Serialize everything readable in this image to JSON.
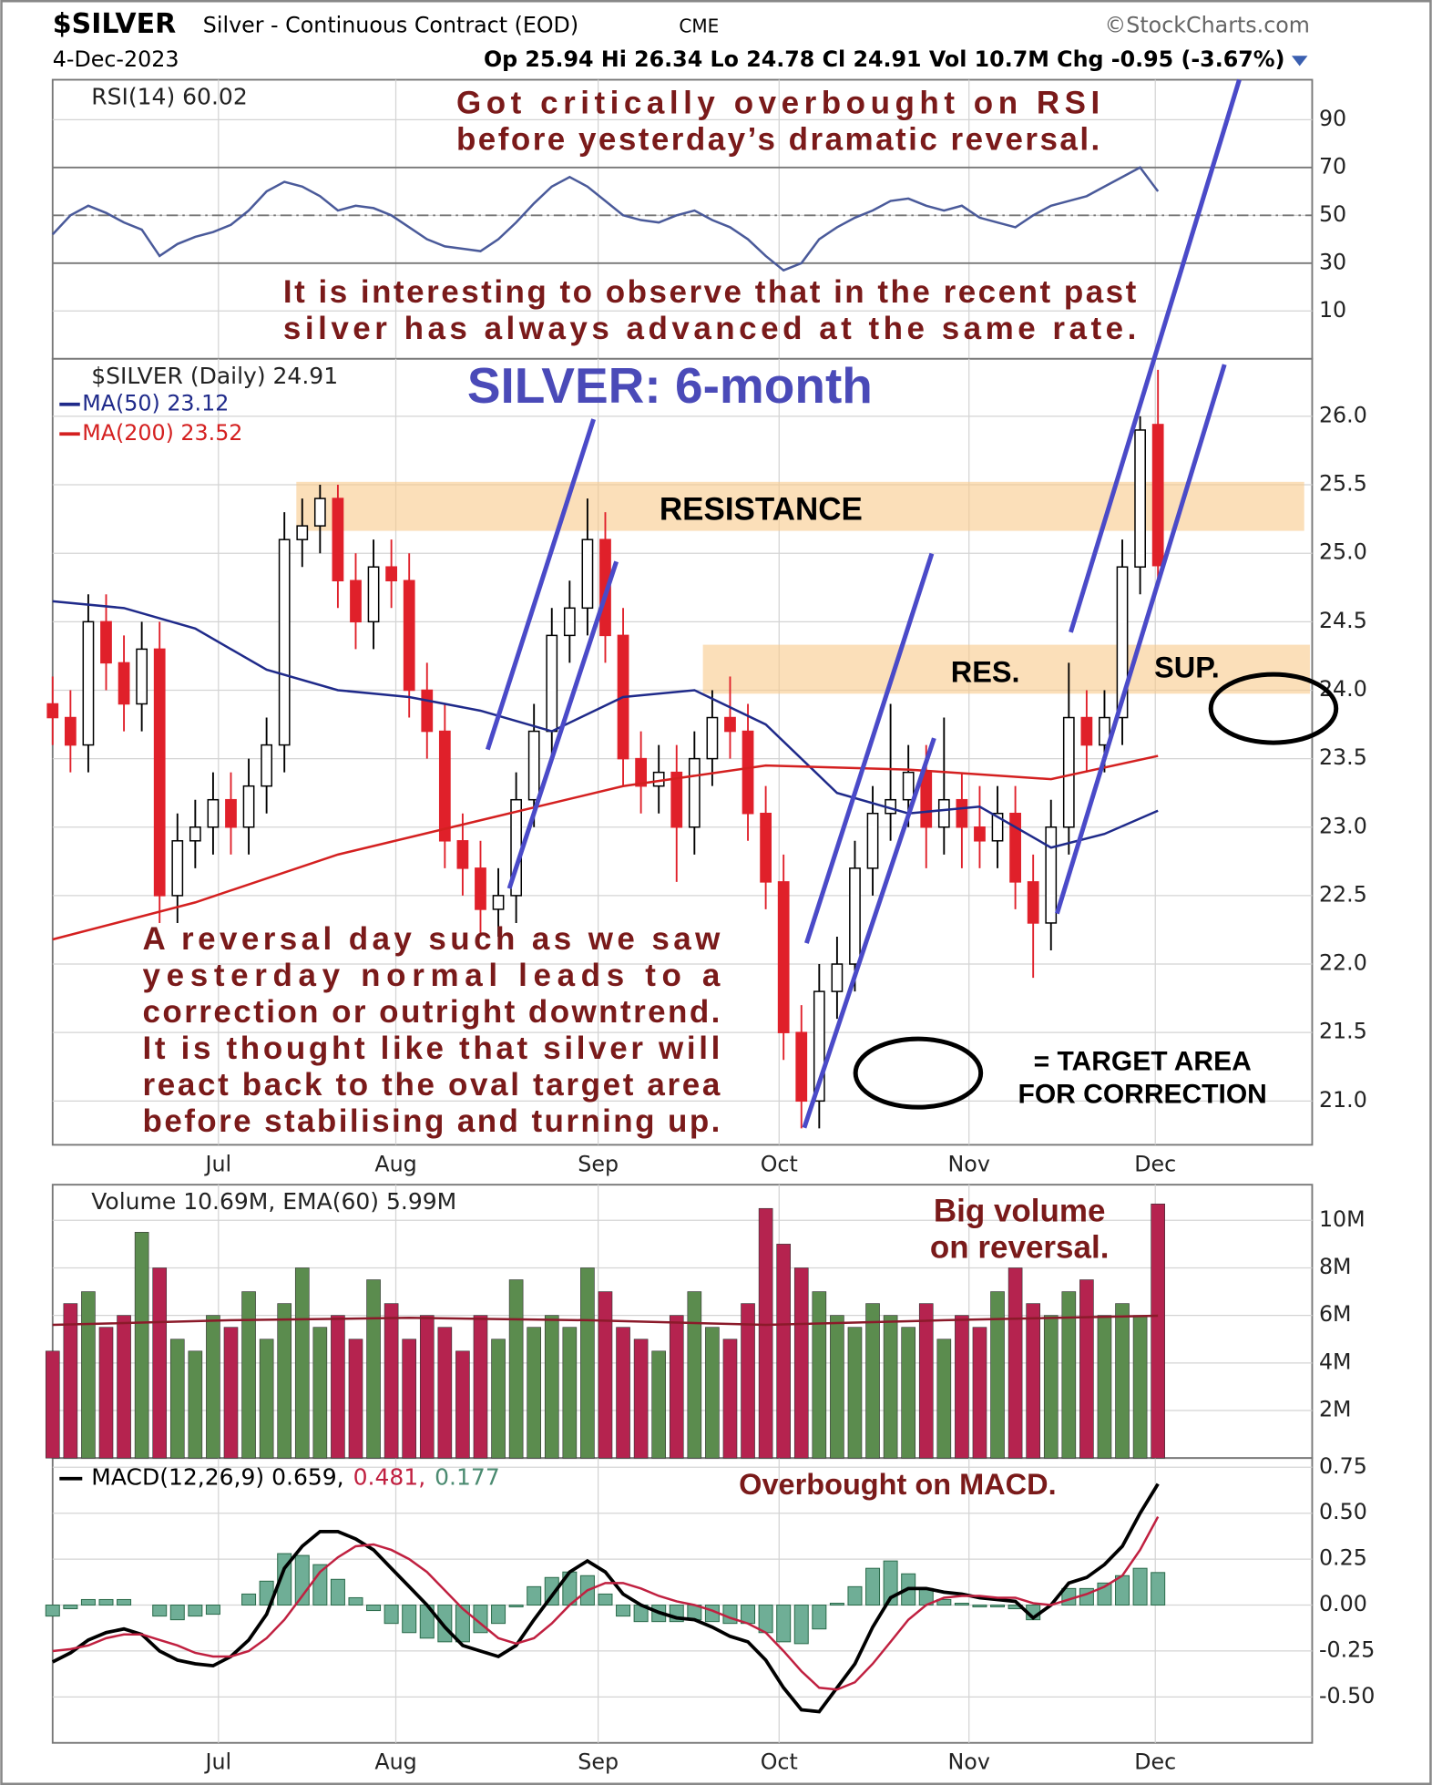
{
  "header": {
    "symbol": "$SILVER",
    "name": "Silver - Continuous Contract (EOD)",
    "exchange": "CME",
    "source": "©StockCharts.com",
    "date": "4-Dec-2023",
    "quote": "Op 25.94 Hi 26.34 Lo 24.78 Cl 24.91 Vol 10.7M Chg -0.95 (-3.67%)"
  },
  "annotations": [
    {
      "lines": [
        "Got critically overbought on RSI",
        "before yesterday’s dramatic reversal."
      ],
      "color": "#7a1a1a"
    },
    {
      "lines": [
        "It is interesting to observe that in the recent past",
        "silver has always advanced at the same rate."
      ],
      "color": "#7a1a1a"
    },
    {
      "lines": [
        "SILVER: 6-month"
      ],
      "color": "#4a4ab8"
    },
    {
      "lines": [
        "RESISTANCE"
      ],
      "color": "#000000"
    },
    {
      "lines": [
        "RES."
      ],
      "color": "#000000"
    },
    {
      "lines": [
        "SUP."
      ],
      "color": "#000000"
    },
    {
      "lines": [
        "A reversal day such as we saw",
        "yesterday normal leads to a",
        "correction or outright downtrend.",
        "It is thought like that silver will",
        "react back to the oval target area",
        "before stabilising and turning up."
      ],
      "color": "#7a1a1a"
    },
    {
      "lines": [
        "= TARGET AREA",
        "FOR CORRECTION"
      ],
      "color": "#000000"
    },
    {
      "lines": [
        "Big volume",
        "on reversal."
      ],
      "color": "#7a1a1a"
    },
    {
      "lines": [
        "Overbought on MACD."
      ],
      "color": "#7a1a1a"
    }
  ],
  "chart_data": [
    {
      "type": "line",
      "title": "RSI(14) 60.02",
      "xlim": [
        0,
        141.3
      ],
      "ylim": [
        -10,
        106.7
      ],
      "yticks": [
        10,
        30,
        50,
        70,
        90
      ],
      "levels": [
        70,
        30
      ],
      "midline": 50,
      "x": [
        0,
        2,
        4,
        6,
        8,
        10,
        12,
        14,
        16,
        18,
        20,
        22,
        24,
        26,
        28,
        30,
        32,
        34,
        36,
        38,
        40,
        42,
        44,
        46,
        48,
        50,
        52,
        54,
        56,
        58,
        60,
        62,
        64,
        66,
        68,
        70,
        72,
        74,
        76,
        78,
        80,
        82,
        84,
        86,
        88,
        90,
        92,
        94,
        96,
        98,
        100,
        102,
        104,
        106,
        108,
        110,
        112,
        114,
        116,
        118,
        120,
        122,
        124
      ],
      "series": [
        {
          "color": "#4a5a9a",
          "values": [
            42,
            50,
            54,
            51,
            47,
            44,
            33,
            38,
            41,
            43,
            46,
            52,
            60,
            64,
            62,
            58,
            52,
            54,
            53,
            50,
            45,
            40,
            37,
            36,
            35,
            40,
            47,
            55,
            62,
            66,
            62,
            56,
            50,
            48,
            47,
            50,
            52,
            48,
            45,
            40,
            33,
            27,
            30,
            40,
            45,
            49,
            52,
            56,
            57,
            54,
            52,
            54,
            49,
            47,
            45,
            50,
            54,
            56,
            58,
            62,
            66,
            70,
            60.02
          ]
        }
      ]
    },
    {
      "type": "candlestick",
      "title": "$SILVER (Daily) 24.91",
      "xlim": [
        0,
        141.3
      ],
      "ylim": [
        20.68,
        26.42
      ],
      "yticks": [
        {
          "value": 21,
          "label": "21.0"
        },
        21.5,
        {
          "value": 22,
          "label": "22.0"
        },
        22.5,
        {
          "value": 23,
          "label": "23.0"
        },
        23.5,
        {
          "value": 24,
          "label": "24.0"
        },
        24.5,
        {
          "value": 25,
          "label": "25.0"
        },
        25.5,
        {
          "value": 26,
          "label": "26.0"
        }
      ],
      "xticks": [
        {
          "value": 18.6,
          "label": "Jul"
        },
        {
          "value": 38.5,
          "label": "Aug"
        },
        {
          "value": 61.2,
          "label": "Sep"
        },
        {
          "value": 81.5,
          "label": "Oct"
        },
        {
          "value": 102.8,
          "label": "Nov"
        },
        {
          "value": 123.7,
          "label": "Dec"
        }
      ],
      "up_color": "#000000",
      "down_color": "#e0202a",
      "x": [
        0,
        2,
        4,
        6,
        8,
        10,
        12,
        14,
        16,
        18,
        20,
        22,
        24,
        26,
        28,
        30,
        32,
        34,
        36,
        38,
        40,
        42,
        44,
        46,
        48,
        50,
        52,
        54,
        56,
        58,
        60,
        62,
        64,
        66,
        68,
        70,
        72,
        74,
        76,
        78,
        80,
        82,
        84,
        86,
        88,
        90,
        92,
        94,
        96,
        98,
        100,
        102,
        104,
        106,
        108,
        110,
        112,
        114,
        116,
        118,
        120,
        122,
        124
      ],
      "open": [
        23.9,
        23.8,
        23.6,
        24.5,
        24.2,
        23.9,
        24.3,
        22.5,
        22.9,
        23.0,
        23.2,
        23.0,
        23.3,
        23.6,
        25.1,
        25.2,
        25.4,
        24.8,
        24.5,
        24.9,
        24.8,
        24.0,
        23.7,
        22.9,
        22.7,
        22.4,
        22.5,
        23.2,
        23.7,
        24.4,
        24.6,
        25.1,
        24.4,
        23.5,
        23.3,
        23.4,
        23.0,
        23.5,
        23.8,
        23.7,
        23.1,
        22.6,
        21.5,
        21.0,
        21.8,
        22.0,
        22.7,
        23.1,
        23.2,
        23.4,
        23.0,
        23.2,
        23.0,
        22.9,
        23.1,
        22.6,
        22.3,
        23.0,
        23.8,
        23.6,
        23.8,
        24.9,
        25.94
      ],
      "high": [
        24.1,
        24.0,
        24.7,
        24.7,
        24.4,
        24.5,
        24.5,
        23.1,
        23.2,
        23.4,
        23.4,
        23.5,
        23.8,
        25.3,
        25.4,
        25.5,
        25.5,
        25.0,
        25.1,
        25.1,
        25.0,
        24.2,
        23.9,
        23.1,
        22.9,
        22.7,
        23.4,
        23.9,
        24.6,
        24.8,
        25.4,
        25.3,
        24.6,
        23.7,
        23.6,
        23.6,
        23.7,
        24.0,
        24.1,
        23.9,
        23.3,
        22.8,
        21.7,
        22.0,
        22.2,
        22.9,
        23.3,
        23.9,
        23.6,
        23.6,
        23.8,
        23.4,
        23.3,
        23.3,
        23.3,
        22.8,
        23.2,
        24.2,
        24.0,
        24.0,
        25.1,
        26.0,
        26.34
      ],
      "low": [
        23.6,
        23.4,
        23.4,
        24.0,
        23.7,
        23.7,
        22.3,
        22.3,
        22.7,
        22.8,
        22.8,
        22.8,
        23.1,
        23.4,
        24.9,
        25.0,
        24.6,
        24.3,
        24.3,
        24.6,
        23.8,
        23.5,
        22.7,
        22.5,
        22.2,
        22.2,
        22.3,
        23.0,
        23.5,
        24.2,
        24.4,
        24.2,
        23.3,
        23.1,
        23.1,
        22.6,
        22.8,
        23.3,
        23.5,
        22.9,
        22.4,
        21.3,
        20.8,
        20.8,
        21.6,
        21.8,
        22.5,
        22.9,
        23.0,
        22.7,
        22.8,
        22.7,
        22.7,
        22.7,
        22.4,
        21.9,
        22.1,
        22.8,
        23.4,
        23.4,
        23.6,
        24.7,
        24.78
      ],
      "close": [
        23.8,
        23.6,
        24.5,
        24.2,
        23.9,
        24.3,
        22.5,
        22.9,
        23.0,
        23.2,
        23.0,
        23.3,
        23.6,
        25.1,
        25.2,
        25.4,
        24.8,
        24.5,
        24.9,
        24.8,
        24.0,
        23.7,
        22.9,
        22.7,
        22.4,
        22.5,
        23.2,
        23.7,
        24.4,
        24.6,
        25.1,
        24.4,
        23.5,
        23.3,
        23.4,
        23.0,
        23.5,
        23.8,
        23.7,
        23.1,
        22.6,
        21.5,
        21.0,
        21.8,
        22.0,
        22.7,
        23.1,
        23.2,
        23.4,
        23.0,
        23.2,
        23.0,
        22.9,
        23.1,
        22.6,
        22.3,
        23.0,
        23.8,
        23.6,
        23.8,
        24.9,
        25.9,
        24.91
      ],
      "series": [
        {
          "name": "MA(50) 23.12",
          "color": "#1f2a8a",
          "x": [
            0,
            8,
            16,
            24,
            32,
            40,
            48,
            56,
            64,
            72,
            80,
            88,
            96,
            104,
            112,
            118,
            124
          ],
          "values": [
            24.65,
            24.6,
            24.45,
            24.15,
            24.0,
            23.95,
            23.85,
            23.7,
            23.95,
            24.0,
            23.75,
            23.25,
            23.1,
            23.15,
            22.85,
            22.95,
            23.12
          ]
        },
        {
          "name": "MA(200) 23.52",
          "color": "#d42020",
          "x": [
            0,
            16,
            32,
            48,
            64,
            80,
            96,
            112,
            124
          ],
          "values": [
            22.18,
            22.45,
            22.8,
            23.05,
            23.3,
            23.45,
            23.42,
            23.35,
            23.52
          ]
        }
      ]
    },
    {
      "type": "bar",
      "title": "Volume 10.69M, EMA(60) 5.99M",
      "xlim": [
        0,
        141.3
      ],
      "ylim": [
        0,
        11.5
      ],
      "yticks": [
        {
          "value": 2,
          "label": "2M"
        },
        {
          "value": 4,
          "label": "4M"
        },
        {
          "value": 6,
          "label": "6M"
        },
        {
          "value": 8,
          "label": "8M"
        },
        {
          "value": 10,
          "label": "10M"
        }
      ],
      "up_color": "#5b8c4e",
      "down_color": "#b5234f",
      "x": [
        0,
        2,
        4,
        6,
        8,
        10,
        12,
        14,
        16,
        18,
        20,
        22,
        24,
        26,
        28,
        30,
        32,
        34,
        36,
        38,
        40,
        42,
        44,
        46,
        48,
        50,
        52,
        54,
        56,
        58,
        60,
        62,
        64,
        66,
        68,
        70,
        72,
        74,
        76,
        78,
        80,
        82,
        84,
        86,
        88,
        90,
        92,
        94,
        96,
        98,
        100,
        102,
        104,
        106,
        108,
        110,
        112,
        114,
        116,
        118,
        120,
        122,
        124
      ],
      "values": [
        4.5,
        6.5,
        7.0,
        5.5,
        6.0,
        9.5,
        8.0,
        5.0,
        4.5,
        6.0,
        5.5,
        7.0,
        5.0,
        6.5,
        8.0,
        5.5,
        6.0,
        5.0,
        7.5,
        6.5,
        5.0,
        6.0,
        5.5,
        4.5,
        6.0,
        5.0,
        7.5,
        5.5,
        6.0,
        5.5,
        8.0,
        7.0,
        5.5,
        5.0,
        4.5,
        6.0,
        7.0,
        5.5,
        5.0,
        6.5,
        10.5,
        9.0,
        8.0,
        7.0,
        6.0,
        5.5,
        6.5,
        6.0,
        5.5,
        6.5,
        5.0,
        6.0,
        5.5,
        7.0,
        8.0,
        6.5,
        6.0,
        7.0,
        7.5,
        6.0,
        6.5,
        6.0,
        10.69
      ],
      "series": [
        {
          "color": "#8b1a2a",
          "x": [
            0,
            20,
            40,
            60,
            80,
            100,
            124
          ],
          "values": [
            5.6,
            5.8,
            5.9,
            5.8,
            5.6,
            5.8,
            5.99
          ]
        }
      ]
    },
    {
      "type": "line",
      "legend": [
        "MACD(12,26,9) 0.659,",
        "0.481,",
        "0.177"
      ],
      "xlim": [
        0,
        141.3
      ],
      "ylim": [
        -0.75,
        0.8
      ],
      "yticks": [
        {
          "value": -0.5,
          "label": "-0.50"
        },
        -0.25,
        {
          "value": 0,
          "label": "0.00"
        },
        0.25,
        {
          "value": 0.5,
          "label": "0.50"
        },
        0.75
      ],
      "xticks": [
        {
          "value": 18.6,
          "label": "Jul"
        },
        {
          "value": 38.5,
          "label": "Aug"
        },
        {
          "value": 61.2,
          "label": "Sep"
        },
        {
          "value": 81.5,
          "label": "Oct"
        },
        {
          "value": 102.8,
          "label": "Nov"
        },
        {
          "value": 123.7,
          "label": "Dec"
        }
      ],
      "x": [
        0,
        2,
        4,
        6,
        8,
        10,
        12,
        14,
        16,
        18,
        20,
        22,
        24,
        26,
        28,
        30,
        32,
        34,
        36,
        38,
        40,
        42,
        44,
        46,
        48,
        50,
        52,
        54,
        56,
        58,
        60,
        62,
        64,
        66,
        68,
        70,
        72,
        74,
        76,
        78,
        80,
        82,
        84,
        86,
        88,
        90,
        92,
        94,
        96,
        98,
        100,
        102,
        104,
        106,
        108,
        110,
        112,
        114,
        116,
        118,
        120,
        122,
        124
      ],
      "series": [
        {
          "style": "line",
          "color": "#000000",
          "values": [
            -0.31,
            -0.26,
            -0.19,
            -0.15,
            -0.13,
            -0.16,
            -0.25,
            -0.3,
            -0.32,
            -0.33,
            -0.28,
            -0.19,
            -0.05,
            0.2,
            0.32,
            0.4,
            0.4,
            0.36,
            0.3,
            0.2,
            0.1,
            0.0,
            -0.12,
            -0.22,
            -0.25,
            -0.28,
            -0.22,
            -0.08,
            0.05,
            0.18,
            0.24,
            0.18,
            0.06,
            0.0,
            -0.04,
            -0.07,
            -0.08,
            -0.12,
            -0.17,
            -0.2,
            -0.3,
            -0.45,
            -0.57,
            -0.58,
            -0.45,
            -0.32,
            -0.12,
            0.04,
            0.09,
            0.09,
            0.07,
            0.06,
            0.04,
            0.03,
            0.02,
            -0.07,
            0.0,
            0.12,
            0.15,
            0.22,
            0.32,
            0.5,
            0.659
          ]
        },
        {
          "style": "line",
          "color": "#c02040",
          "values": [
            -0.25,
            -0.24,
            -0.22,
            -0.18,
            -0.16,
            -0.16,
            -0.19,
            -0.22,
            -0.26,
            -0.28,
            -0.28,
            -0.25,
            -0.18,
            -0.08,
            0.05,
            0.18,
            0.26,
            0.32,
            0.33,
            0.3,
            0.25,
            0.18,
            0.08,
            -0.02,
            -0.1,
            -0.18,
            -0.21,
            -0.18,
            -0.1,
            0.0,
            0.08,
            0.12,
            0.12,
            0.09,
            0.05,
            0.02,
            0.0,
            -0.03,
            -0.07,
            -0.1,
            -0.15,
            -0.25,
            -0.36,
            -0.45,
            -0.46,
            -0.42,
            -0.32,
            -0.2,
            -0.08,
            0.0,
            0.04,
            0.05,
            0.05,
            0.04,
            0.04,
            0.01,
            0.0,
            0.03,
            0.06,
            0.1,
            0.16,
            0.3,
            0.481
          ]
        },
        {
          "style": "histogram",
          "color": "#6fae96",
          "values": [
            -0.06,
            -0.02,
            0.03,
            0.03,
            0.03,
            0.0,
            -0.06,
            -0.08,
            -0.06,
            -0.05,
            0.0,
            0.06,
            0.13,
            0.28,
            0.27,
            0.22,
            0.14,
            0.04,
            -0.03,
            -0.1,
            -0.15,
            -0.18,
            -0.2,
            -0.2,
            -0.15,
            -0.1,
            -0.01,
            0.1,
            0.15,
            0.18,
            0.16,
            0.06,
            -0.06,
            -0.09,
            -0.09,
            -0.09,
            -0.08,
            -0.09,
            -0.1,
            -0.1,
            -0.15,
            -0.2,
            -0.21,
            -0.13,
            0.01,
            0.1,
            0.2,
            0.24,
            0.17,
            0.09,
            0.03,
            0.01,
            -0.01,
            -0.01,
            -0.02,
            -0.08,
            0.0,
            0.09,
            0.09,
            0.12,
            0.16,
            0.2,
            0.177
          ]
        }
      ]
    }
  ]
}
